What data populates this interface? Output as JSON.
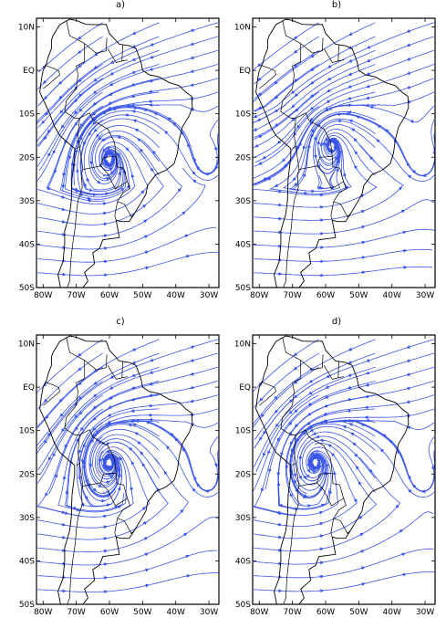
{
  "panels": [
    {
      "label": "a)",
      "center": [
        -60,
        -20
      ],
      "center_shape": "spiral-ccw"
    },
    {
      "label": "b)",
      "center": [
        -58,
        -17
      ],
      "center_shape": "weak-confluence"
    },
    {
      "label": "c)",
      "center": [
        -60,
        -17
      ],
      "center_shape": "gyre"
    },
    {
      "label": "d)",
      "center": [
        -63,
        -17
      ],
      "center_shape": "spiral-ccw"
    }
  ],
  "axes": {
    "lat_labels": [
      "10N",
      "EQ",
      "10S",
      "20S",
      "30S",
      "40S",
      "50S"
    ],
    "lat_values": [
      10,
      0,
      -10,
      -20,
      -30,
      -40,
      -50
    ],
    "lon_labels": [
      "80W",
      "70W",
      "60W",
      "50W",
      "40W",
      "30W"
    ],
    "lon_values": [
      -80,
      -70,
      -60,
      -50,
      -40,
      -30
    ],
    "lon_range": [
      -82,
      -27
    ],
    "lat_range": [
      -50,
      12
    ]
  },
  "colors": {
    "streamline": "#3b55e6",
    "coast": "#000000",
    "frame": "#000000"
  }
}
